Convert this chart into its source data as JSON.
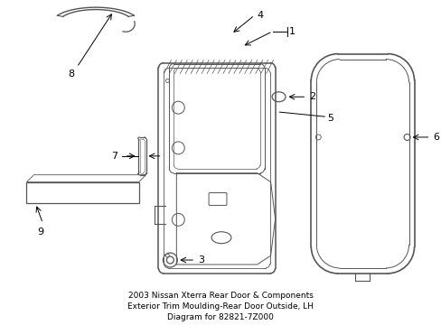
{
  "background_color": "#ffffff",
  "line_color": "#555555",
  "label_color": "#000000",
  "title": "2003 Nissan Xterra Rear Door & Components\nExterior Trim Moulding-Rear Door Outside, LH\nDiagram for 82821-7Z000",
  "title_fontsize": 6.5,
  "label_fontsize": 8,
  "figsize": [
    4.89,
    3.6
  ],
  "dpi": 100
}
